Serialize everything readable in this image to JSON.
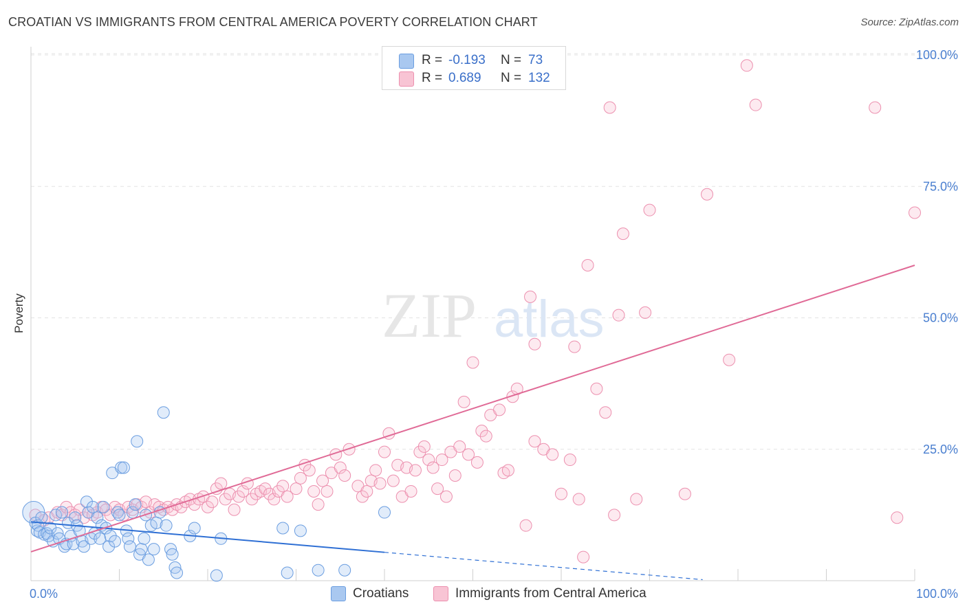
{
  "title": "CROATIAN VS IMMIGRANTS FROM CENTRAL AMERICA POVERTY CORRELATION CHART",
  "source": "Source: ZipAtlas.com",
  "watermark": "ZIPatlas",
  "legend": {
    "rows": [
      {
        "r_label": "R =",
        "r_value": "-0.193",
        "n_label": "N =",
        "n_value": "73",
        "color": "#a9c8f0",
        "border": "#6a9de0"
      },
      {
        "r_label": "R =",
        "r_value": "0.689",
        "n_label": "N =",
        "n_value": "132",
        "color": "#f8c4d4",
        "border": "#ec8fae"
      }
    ]
  },
  "bottom_legend": [
    {
      "label": "Croatians",
      "color": "#a9c8f0",
      "border": "#6a9de0"
    },
    {
      "label": "Immigrants from Central America",
      "color": "#f8c4d4",
      "border": "#ec8fae"
    }
  ],
  "chart_data": {
    "type": "scatter",
    "ylabel": "Poverty",
    "xlabel": "",
    "xlim": [
      0,
      100
    ],
    "ylim": [
      0,
      100
    ],
    "x_tick_labels": [
      "0.0%",
      "100.0%"
    ],
    "y_ticks": [
      {
        "value": 25,
        "label": "25.0%"
      },
      {
        "value": 50,
        "label": "50.0%"
      },
      {
        "value": 75,
        "label": "75.0%"
      },
      {
        "value": 100,
        "label": "100.0%"
      }
    ],
    "grid": true,
    "colors": {
      "croatians": "#6a9de0",
      "croatians_line": "#2e6fd4",
      "immigrants": "#ec8fae",
      "immigrants_line": "#e06a96"
    },
    "series": [
      {
        "name": "Croatians",
        "trend": {
          "x0": 0,
          "y0": 11.2,
          "x1": 40,
          "y1": 5.4,
          "dashed_to_x": 76,
          "dashed_to_y": 0.2
        },
        "points": [
          [
            0.3,
            13.0
          ],
          [
            0.5,
            11.0
          ],
          [
            0.7,
            9.5
          ],
          [
            0.8,
            10.5
          ],
          [
            1.0,
            9.2
          ],
          [
            1.2,
            12.0
          ],
          [
            1.5,
            8.8
          ],
          [
            1.8,
            9.0
          ],
          [
            2.0,
            8.5
          ],
          [
            2.2,
            10.0
          ],
          [
            2.5,
            7.5
          ],
          [
            2.8,
            12.5
          ],
          [
            3.0,
            9.0
          ],
          [
            3.2,
            8.0
          ],
          [
            3.5,
            13.0
          ],
          [
            3.8,
            6.5
          ],
          [
            4.0,
            7.0
          ],
          [
            4.2,
            11.0
          ],
          [
            4.5,
            8.5
          ],
          [
            4.8,
            7.0
          ],
          [
            5.0,
            12.0
          ],
          [
            5.2,
            10.5
          ],
          [
            5.5,
            9.5
          ],
          [
            5.8,
            7.5
          ],
          [
            6.0,
            6.5
          ],
          [
            6.3,
            15.0
          ],
          [
            6.5,
            13.0
          ],
          [
            6.8,
            8.0
          ],
          [
            7.0,
            14.0
          ],
          [
            7.2,
            9.0
          ],
          [
            7.5,
            12.0
          ],
          [
            7.8,
            8.0
          ],
          [
            8.0,
            10.5
          ],
          [
            8.2,
            14.0
          ],
          [
            8.5,
            10.0
          ],
          [
            8.8,
            6.5
          ],
          [
            9.0,
            8.5
          ],
          [
            9.2,
            20.5
          ],
          [
            9.5,
            7.5
          ],
          [
            9.8,
            13.0
          ],
          [
            10.0,
            12.5
          ],
          [
            10.2,
            21.5
          ],
          [
            10.5,
            21.5
          ],
          [
            10.8,
            9.5
          ],
          [
            11.0,
            8.0
          ],
          [
            11.2,
            6.5
          ],
          [
            11.5,
            13.0
          ],
          [
            11.8,
            14.5
          ],
          [
            12.0,
            26.5
          ],
          [
            12.3,
            5.0
          ],
          [
            12.5,
            6.0
          ],
          [
            12.8,
            8.0
          ],
          [
            13.0,
            12.5
          ],
          [
            13.3,
            4.0
          ],
          [
            13.6,
            10.5
          ],
          [
            13.9,
            6.0
          ],
          [
            14.2,
            11.0
          ],
          [
            14.6,
            13.0
          ],
          [
            15.0,
            32.0
          ],
          [
            15.3,
            10.5
          ],
          [
            15.8,
            6.0
          ],
          [
            16.0,
            5.0
          ],
          [
            16.3,
            2.5
          ],
          [
            16.5,
            1.5
          ],
          [
            18.0,
            8.5
          ],
          [
            18.5,
            10.0
          ],
          [
            21.0,
            1.0
          ],
          [
            21.5,
            8.0
          ],
          [
            28.5,
            10.0
          ],
          [
            29.0,
            1.5
          ],
          [
            30.5,
            9.5
          ],
          [
            32.5,
            2.0
          ],
          [
            35.5,
            2.0
          ],
          [
            40.0,
            13.0
          ]
        ]
      },
      {
        "name": "Immigrants from Central America",
        "trend": {
          "x0": 0,
          "y0": 5.5,
          "x1": 100,
          "y1": 60.0
        },
        "points": [
          [
            0.5,
            12.5
          ],
          [
            1.5,
            11.5
          ],
          [
            2.0,
            12.0
          ],
          [
            3.0,
            13.0
          ],
          [
            3.5,
            12.5
          ],
          [
            4.0,
            14.0
          ],
          [
            4.5,
            13.0
          ],
          [
            5.0,
            12.5
          ],
          [
            5.5,
            13.5
          ],
          [
            6.0,
            12.0
          ],
          [
            6.5,
            13.0
          ],
          [
            7.0,
            12.5
          ],
          [
            7.5,
            13.0
          ],
          [
            8.0,
            14.0
          ],
          [
            8.5,
            13.5
          ],
          [
            9.0,
            12.5
          ],
          [
            9.5,
            14.0
          ],
          [
            10.0,
            13.5
          ],
          [
            10.5,
            12.5
          ],
          [
            11.0,
            14.0
          ],
          [
            11.5,
            13.5
          ],
          [
            12.0,
            14.5
          ],
          [
            12.5,
            14.0
          ],
          [
            13.0,
            15.0
          ],
          [
            13.5,
            13.0
          ],
          [
            14.0,
            14.5
          ],
          [
            14.5,
            14.0
          ],
          [
            15.0,
            13.5
          ],
          [
            15.5,
            14.0
          ],
          [
            16.0,
            13.5
          ],
          [
            16.5,
            14.5
          ],
          [
            17.0,
            14.0
          ],
          [
            17.5,
            15.0
          ],
          [
            18.0,
            15.5
          ],
          [
            18.5,
            14.5
          ],
          [
            19.0,
            15.5
          ],
          [
            19.5,
            16.0
          ],
          [
            20.0,
            14.0
          ],
          [
            20.5,
            15.0
          ],
          [
            21.0,
            17.5
          ],
          [
            21.5,
            18.5
          ],
          [
            22.0,
            15.5
          ],
          [
            22.5,
            16.5
          ],
          [
            23.0,
            13.5
          ],
          [
            23.5,
            16.0
          ],
          [
            24.0,
            17.0
          ],
          [
            24.5,
            18.5
          ],
          [
            25.0,
            15.5
          ],
          [
            25.5,
            16.5
          ],
          [
            26.0,
            17.0
          ],
          [
            26.5,
            17.5
          ],
          [
            27.0,
            16.5
          ],
          [
            27.5,
            15.5
          ],
          [
            28.0,
            17.0
          ],
          [
            28.5,
            18.0
          ],
          [
            29.0,
            16.0
          ],
          [
            30.0,
            17.5
          ],
          [
            30.5,
            19.5
          ],
          [
            31.0,
            22.0
          ],
          [
            31.5,
            21.0
          ],
          [
            32.0,
            17.0
          ],
          [
            32.5,
            14.5
          ],
          [
            33.0,
            19.0
          ],
          [
            33.5,
            17.0
          ],
          [
            34.0,
            20.5
          ],
          [
            34.5,
            24.0
          ],
          [
            35.0,
            21.5
          ],
          [
            35.5,
            20.0
          ],
          [
            36.0,
            25.0
          ],
          [
            37.0,
            18.0
          ],
          [
            37.5,
            16.0
          ],
          [
            38.0,
            17.0
          ],
          [
            38.5,
            19.0
          ],
          [
            39.0,
            21.0
          ],
          [
            39.5,
            18.5
          ],
          [
            40.0,
            24.5
          ],
          [
            40.5,
            28.0
          ],
          [
            41.0,
            19.0
          ],
          [
            41.5,
            22.0
          ],
          [
            42.0,
            16.0
          ],
          [
            42.5,
            21.5
          ],
          [
            43.0,
            17.0
          ],
          [
            43.5,
            21.0
          ],
          [
            44.0,
            24.5
          ],
          [
            44.5,
            25.5
          ],
          [
            45.0,
            23.0
          ],
          [
            45.5,
            21.5
          ],
          [
            46.0,
            17.5
          ],
          [
            46.5,
            23.0
          ],
          [
            47.0,
            16.0
          ],
          [
            47.5,
            24.5
          ],
          [
            48.0,
            20.0
          ],
          [
            48.5,
            25.5
          ],
          [
            49.0,
            34.0
          ],
          [
            49.5,
            24.0
          ],
          [
            50.0,
            41.5
          ],
          [
            50.5,
            22.5
          ],
          [
            51.0,
            28.5
          ],
          [
            51.5,
            27.5
          ],
          [
            52.0,
            31.5
          ],
          [
            53.0,
            32.5
          ],
          [
            53.5,
            20.5
          ],
          [
            54.0,
            21.0
          ],
          [
            54.5,
            35.0
          ],
          [
            55.0,
            36.5
          ],
          [
            56.0,
            10.5
          ],
          [
            56.5,
            54.0
          ],
          [
            57.0,
            45.0
          ],
          [
            57.0,
            26.5
          ],
          [
            58.0,
            25.0
          ],
          [
            59.0,
            24.0
          ],
          [
            60.0,
            16.5
          ],
          [
            61.0,
            23.0
          ],
          [
            61.5,
            44.5
          ],
          [
            62.0,
            15.5
          ],
          [
            62.5,
            4.5
          ],
          [
            63.0,
            60.0
          ],
          [
            64.0,
            36.5
          ],
          [
            65.0,
            32.0
          ],
          [
            65.5,
            90.0
          ],
          [
            66.0,
            12.5
          ],
          [
            66.5,
            50.5
          ],
          [
            67.0,
            66.0
          ],
          [
            68.5,
            15.5
          ],
          [
            69.5,
            51.0
          ],
          [
            70.0,
            70.5
          ],
          [
            74.0,
            16.5
          ],
          [
            76.5,
            73.5
          ],
          [
            79.0,
            42.0
          ],
          [
            81.0,
            98.0
          ],
          [
            82.0,
            90.5
          ],
          [
            95.5,
            90.0
          ],
          [
            98.0,
            12.0
          ],
          [
            100.0,
            70.0
          ]
        ]
      }
    ]
  }
}
